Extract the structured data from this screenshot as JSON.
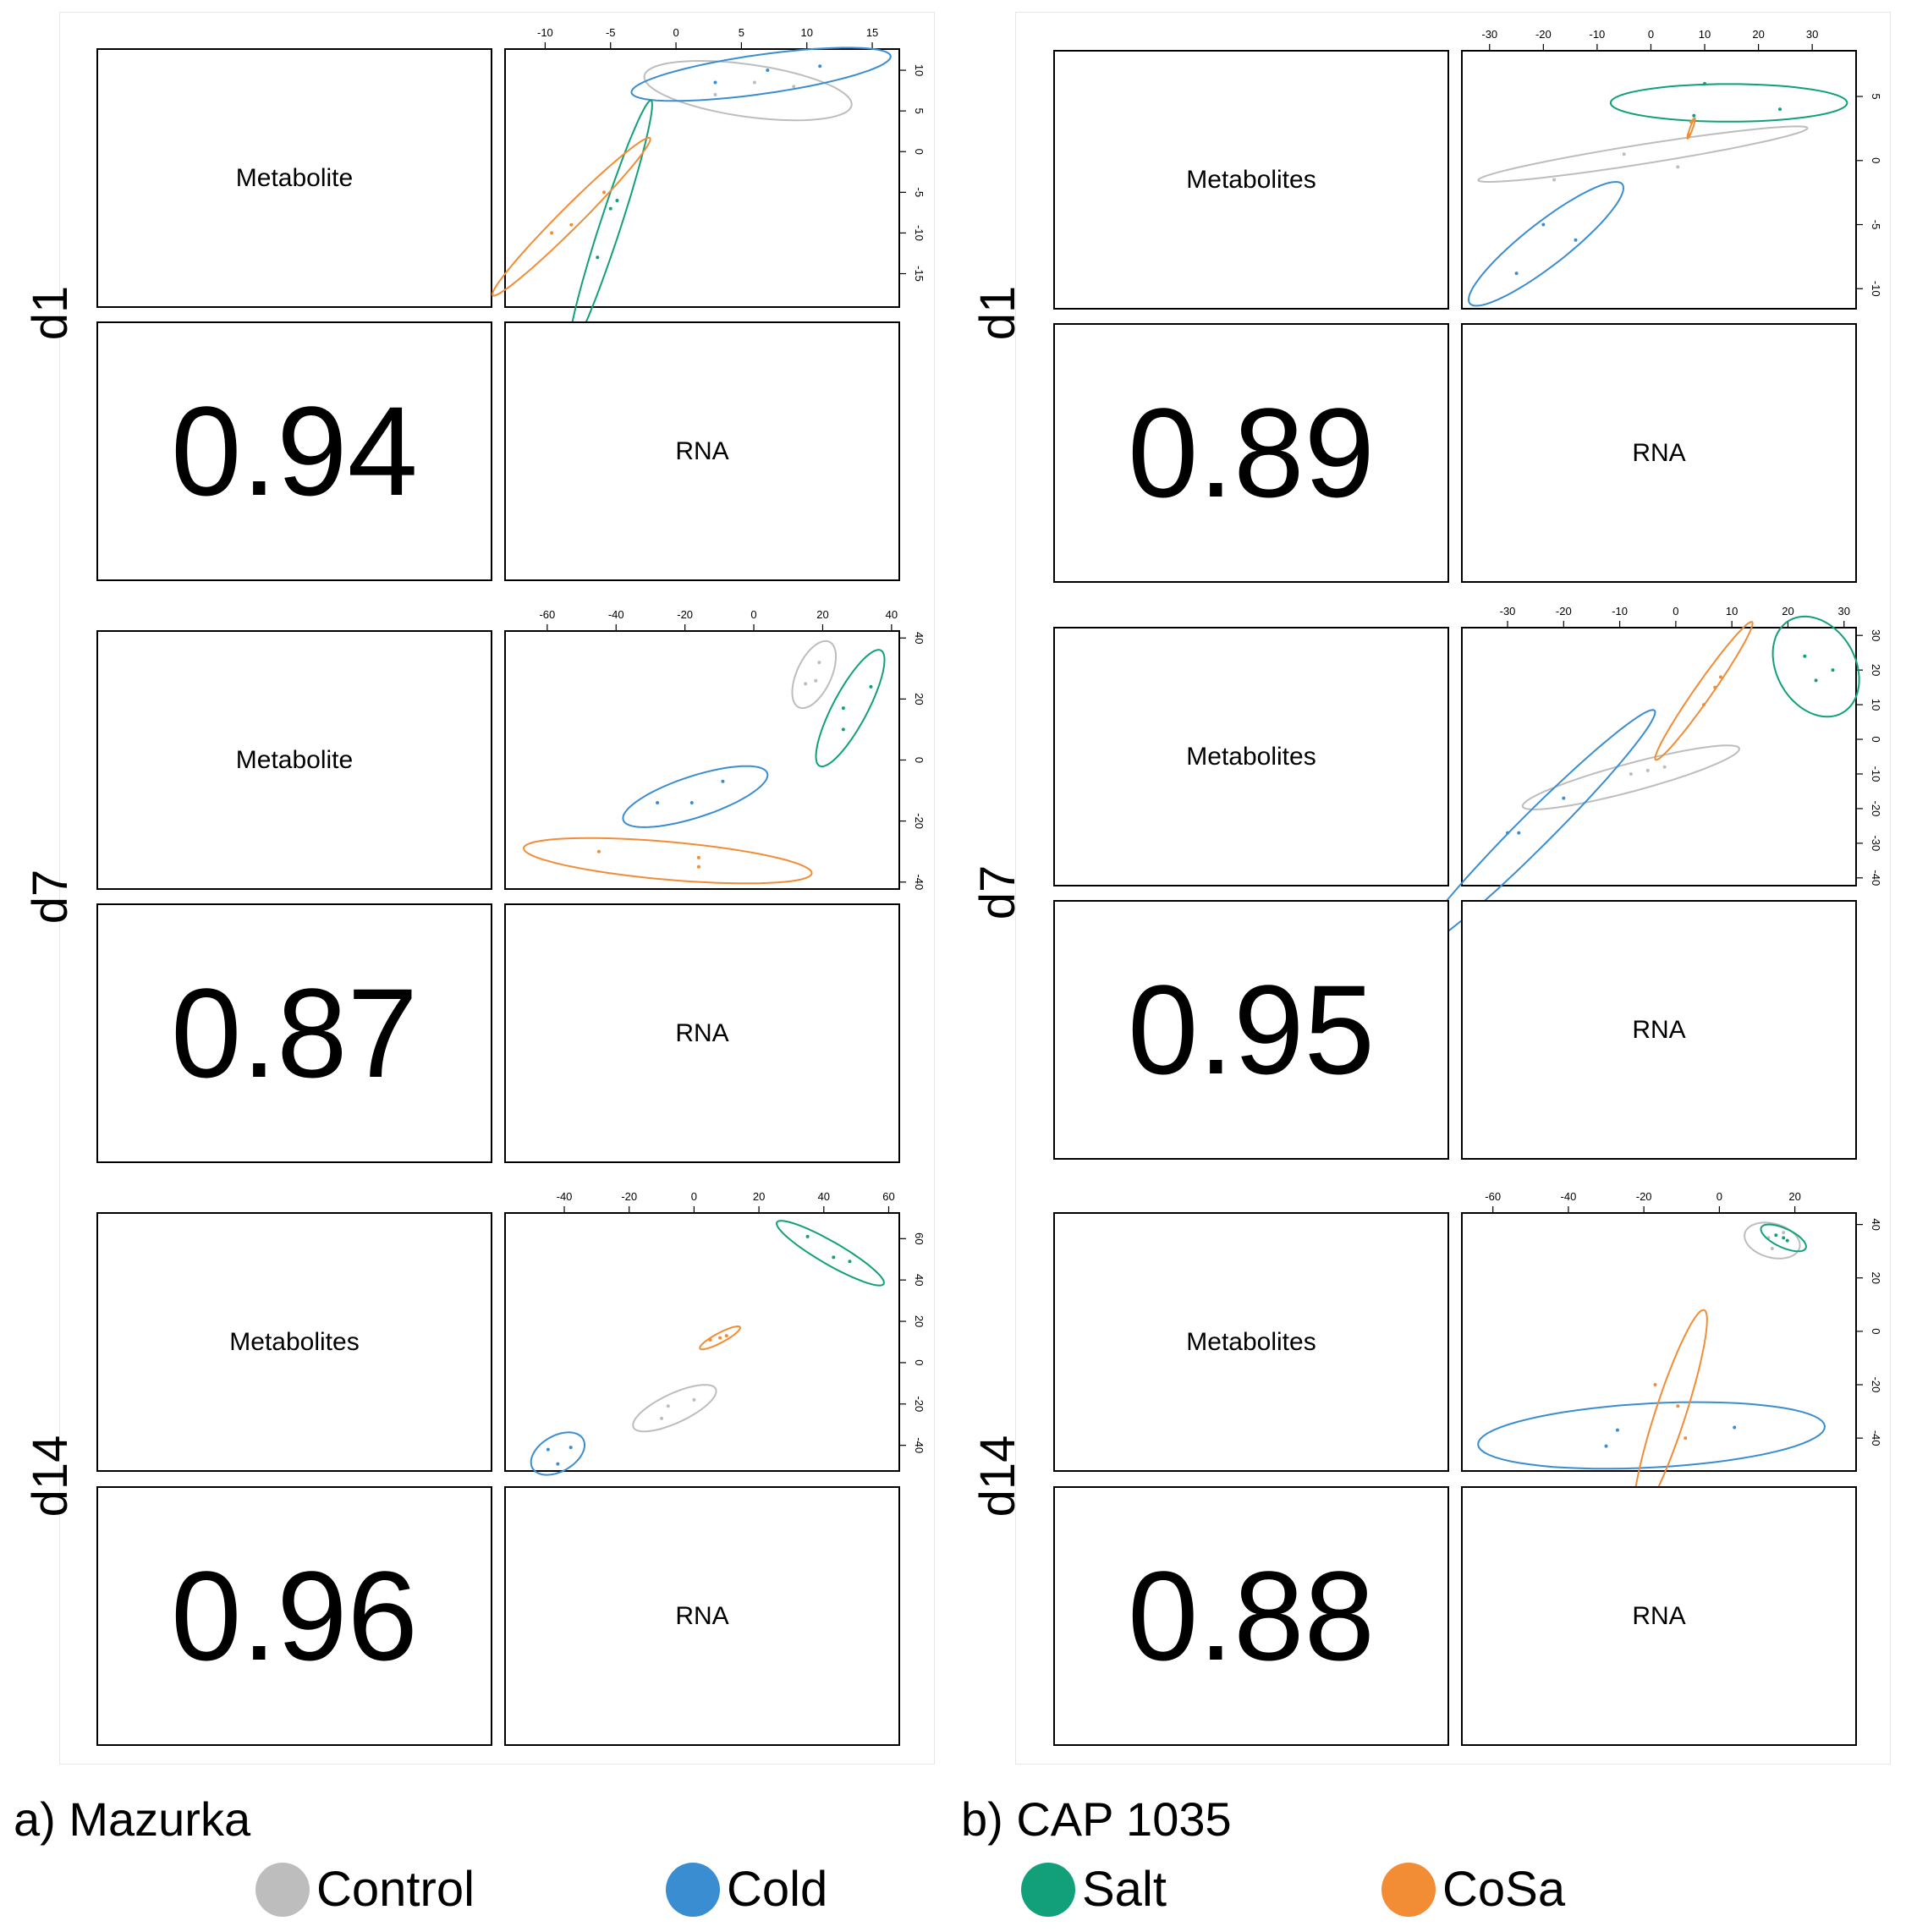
{
  "legend": [
    {
      "name": "Control",
      "color": "#bdbdbd"
    },
    {
      "name": "Cold",
      "color": "#3a8dd1"
    },
    {
      "name": "Salt",
      "color": "#11a079"
    },
    {
      "name": "CoSa",
      "color": "#f28c35"
    }
  ],
  "panels": [
    {
      "caption": "a) Mazurka",
      "rows": [
        {
          "label": "d1",
          "metabolite_label": "Metabolite",
          "rna_label": "RNA",
          "correlation": "0.94"
        },
        {
          "label": "d7",
          "metabolite_label": "Metabolite",
          "rna_label": "RNA",
          "correlation": "0.87"
        },
        {
          "label": "d14",
          "metabolite_label": "Metabolites",
          "rna_label": "RNA",
          "correlation": "0.96"
        }
      ]
    },
    {
      "caption": "b) CAP 1035",
      "rows": [
        {
          "label": "d1",
          "metabolite_label": "Metabolites",
          "rna_label": "RNA",
          "correlation": "0.89"
        },
        {
          "label": "d7",
          "metabolite_label": "Metabolites",
          "rna_label": "RNA",
          "correlation": "0.95"
        },
        {
          "label": "d14",
          "metabolite_label": "Metabolites",
          "rna_label": "RNA",
          "correlation": "0.88"
        }
      ]
    }
  ],
  "chart_data": [
    {
      "type": "scatter",
      "panel": "a) Mazurka",
      "day": "d1",
      "xlim": [
        -13,
        17
      ],
      "ylim": [
        -19,
        12.5
      ],
      "xticks": [
        -10,
        -5,
        0,
        5,
        10,
        15
      ],
      "yticks": [
        -15,
        -10,
        -5,
        0,
        5,
        10
      ],
      "series": [
        {
          "name": "Control",
          "color": "#bdbdbd",
          "points": [
            [
              3,
              7
            ],
            [
              9,
              8
            ],
            [
              6,
              8.5
            ]
          ],
          "ellipse": {
            "cx": 5.5,
            "cy": 7.5,
            "rx": 8,
            "ry": 2,
            "angle": -8
          }
        },
        {
          "name": "Cold",
          "color": "#3a8dd1",
          "points": [
            [
              3,
              8.5
            ],
            [
              7,
              10
            ],
            [
              11,
              10.5
            ]
          ],
          "ellipse": {
            "cx": 6.5,
            "cy": 9.5,
            "rx": 10,
            "ry": 1.5,
            "angle": 8
          }
        },
        {
          "name": "Salt",
          "color": "#11a079",
          "points": [
            [
              -4.5,
              -6
            ],
            [
              -6,
              -13
            ],
            [
              -5,
              -7
            ]
          ],
          "ellipse": {
            "cx": -5,
            "cy": -9,
            "rx": 10,
            "ry": 0.8,
            "angle": 72
          }
        },
        {
          "name": "CoSa",
          "color": "#f28c35",
          "points": [
            [
              -8,
              -9
            ],
            [
              -5.5,
              -5
            ],
            [
              -9.5,
              -10
            ]
          ],
          "ellipse": {
            "cx": -8,
            "cy": -8,
            "rx": 8.5,
            "ry": 0.8,
            "angle": 45
          }
        }
      ]
    },
    {
      "type": "scatter",
      "panel": "a) Mazurka",
      "day": "d7",
      "xlim": [
        -72,
        42
      ],
      "ylim": [
        -42,
        42
      ],
      "xticks": [
        -60,
        -40,
        -20,
        0,
        20,
        40
      ],
      "yticks": [
        -40,
        -20,
        0,
        20,
        40
      ],
      "series": [
        {
          "name": "Control",
          "color": "#bdbdbd",
          "points": [
            [
              19,
              32
            ],
            [
              15,
              25
            ],
            [
              18,
              26
            ]
          ],
          "ellipse": {
            "cx": 17.5,
            "cy": 28,
            "rx": 10.5,
            "ry": 5,
            "angle": 65
          }
        },
        {
          "name": "Cold",
          "color": "#3a8dd1",
          "points": [
            [
              -28,
              -14
            ],
            [
              -18,
              -14
            ],
            [
              -9,
              -7
            ]
          ],
          "ellipse": {
            "cx": -17,
            "cy": -12,
            "rx": 22,
            "ry": 6,
            "angle": 18
          }
        },
        {
          "name": "Salt",
          "color": "#11a079",
          "points": [
            [
              34,
              24
            ],
            [
              26,
              17
            ],
            [
              26,
              10
            ]
          ],
          "ellipse": {
            "cx": 28,
            "cy": 17,
            "rx": 19,
            "ry": 5,
            "angle": 62
          }
        },
        {
          "name": "CoSa",
          "color": "#f28c35",
          "points": [
            [
              -45,
              -30
            ],
            [
              -16,
              -32
            ],
            [
              -16,
              -35
            ]
          ],
          "ellipse": {
            "cx": -25,
            "cy": -33,
            "rx": 42,
            "ry": 5.5,
            "angle": -5
          }
        }
      ]
    },
    {
      "type": "scatter",
      "panel": "a) Mazurka",
      "day": "d14",
      "xlim": [
        -58,
        63
      ],
      "ylim": [
        -52,
        72
      ],
      "xticks": [
        -40,
        -20,
        0,
        20,
        40,
        60
      ],
      "yticks": [
        -40,
        -20,
        0,
        20,
        40,
        60
      ],
      "series": [
        {
          "name": "Control",
          "color": "#bdbdbd",
          "points": [
            [
              -10,
              -27
            ],
            [
              -8,
              -21
            ],
            [
              0,
              -18
            ]
          ],
          "ellipse": {
            "cx": -6,
            "cy": -22,
            "rx": 14,
            "ry": 4.5,
            "angle": 25
          }
        },
        {
          "name": "Cold",
          "color": "#3a8dd1",
          "points": [
            [
              -45,
              -42
            ],
            [
              -42,
              -49
            ],
            [
              -38,
              -41
            ]
          ],
          "ellipse": {
            "cx": -42,
            "cy": -44,
            "rx": 9,
            "ry": 5.5,
            "angle": 30
          }
        },
        {
          "name": "Salt",
          "color": "#11a079",
          "points": [
            [
              35,
              61
            ],
            [
              43,
              51
            ],
            [
              48,
              49
            ]
          ],
          "ellipse": {
            "cx": 42,
            "cy": 53,
            "rx": 19,
            "ry": 3.5,
            "angle": -30
          }
        },
        {
          "name": "CoSa",
          "color": "#f28c35",
          "points": [
            [
              5,
              11
            ],
            [
              10,
              13
            ],
            [
              8,
              12
            ]
          ],
          "ellipse": {
            "cx": 8,
            "cy": 12,
            "rx": 7,
            "ry": 1.5,
            "angle": 28
          }
        }
      ]
    },
    {
      "type": "scatter",
      "panel": "b) CAP 1035",
      "day": "d1",
      "xlim": [
        -35,
        38
      ],
      "ylim": [
        -11.5,
        8.5
      ],
      "xticks": [
        -30,
        -20,
        -10,
        0,
        10,
        20,
        30
      ],
      "yticks": [
        -10,
        -5,
        0,
        5
      ],
      "series": [
        {
          "name": "Control",
          "color": "#bdbdbd",
          "points": [
            [
              -18,
              -1.5
            ],
            [
              5,
              -0.5
            ],
            [
              -5,
              0.5
            ]
          ],
          "ellipse": {
            "cx": -1.5,
            "cy": 0.5,
            "rx": 31,
            "ry": 1.8,
            "angle": 9
          }
        },
        {
          "name": "Cold",
          "color": "#3a8dd1",
          "points": [
            [
              -25,
              -8.8
            ],
            [
              -20,
              -5
            ],
            [
              -14,
              -6.2
            ]
          ],
          "ellipse": {
            "cx": -19.5,
            "cy": -6.5,
            "rx": 18,
            "ry": 4,
            "angle": 38
          }
        },
        {
          "name": "Salt",
          "color": "#11a079",
          "points": [
            [
              10,
              6
            ],
            [
              24,
              4
            ],
            [
              8,
              3.5
            ]
          ],
          "ellipse": {
            "cx": 14.5,
            "cy": 4.5,
            "rx": 22,
            "ry": 3.5,
            "angle": 0
          }
        },
        {
          "name": "CoSa",
          "color": "#f28c35",
          "points": [
            [
              7.5,
              3
            ],
            [
              7,
              2
            ],
            [
              8,
              3.2
            ]
          ],
          "ellipse": {
            "cx": 7.5,
            "cy": 2.5,
            "rx": 2,
            "ry": 0.25,
            "angle": 70
          }
        }
      ]
    },
    {
      "type": "scatter",
      "panel": "b) CAP 1035",
      "day": "d7",
      "xlim": [
        -38,
        32
      ],
      "ylim": [
        -42,
        32
      ],
      "xticks": [
        -30,
        -20,
        -10,
        0,
        10,
        20,
        30
      ],
      "yticks": [
        -40,
        -30,
        -20,
        -10,
        0,
        10,
        20,
        30
      ],
      "series": [
        {
          "name": "Control",
          "color": "#bdbdbd",
          "points": [
            [
              -8,
              -10
            ],
            [
              -2,
              -8
            ],
            [
              -5,
              -9
            ]
          ],
          "ellipse": {
            "cx": -8,
            "cy": -11,
            "rx": 20,
            "ry": 2.5,
            "angle": 15
          }
        },
        {
          "name": "Cold",
          "color": "#3a8dd1",
          "points": [
            [
              -30,
              -27
            ],
            [
              -28,
              -27
            ],
            [
              -20,
              -17
            ]
          ],
          "ellipse": {
            "cx": -25,
            "cy": -26,
            "rx": 30,
            "ry": 3,
            "angle": 45
          }
        },
        {
          "name": "Salt",
          "color": "#11a079",
          "points": [
            [
              23,
              24
            ],
            [
              25,
              17
            ],
            [
              28,
              20
            ]
          ],
          "ellipse": {
            "cx": 25,
            "cy": 21,
            "rx": 9.5,
            "ry": 7,
            "angle": -60
          }
        },
        {
          "name": "CoSa",
          "color": "#f28c35",
          "points": [
            [
              5,
              10
            ],
            [
              7,
              15
            ],
            [
              8,
              18
            ]
          ],
          "ellipse": {
            "cx": 5,
            "cy": 14,
            "rx": 15,
            "ry": 1.5,
            "angle": 55
          }
        }
      ]
    },
    {
      "type": "scatter",
      "panel": "b) CAP 1035",
      "day": "d14",
      "xlim": [
        -68,
        36
      ],
      "ylim": [
        -52,
        44
      ],
      "xticks": [
        -60,
        -40,
        -20,
        0,
        20
      ],
      "yticks": [
        -40,
        -20,
        0,
        20,
        40
      ],
      "series": [
        {
          "name": "Control",
          "color": "#bdbdbd",
          "points": [
            [
              13,
              35
            ],
            [
              14,
              31
            ],
            [
              17,
              37
            ]
          ],
          "ellipse": {
            "cx": 14,
            "cy": 34,
            "rx": 7.5,
            "ry": 4.5,
            "angle": -15
          }
        },
        {
          "name": "Cold",
          "color": "#3a8dd1",
          "points": [
            [
              -27,
              -37
            ],
            [
              -30,
              -43
            ],
            [
              4,
              -36
            ]
          ],
          "ellipse": {
            "cx": -18,
            "cy": -39,
            "rx": 46,
            "ry": 8.5,
            "angle": 3
          }
        },
        {
          "name": "Salt",
          "color": "#11a079",
          "points": [
            [
              15,
              36
            ],
            [
              18,
              34
            ],
            [
              17,
              35
            ]
          ],
          "ellipse": {
            "cx": 17,
            "cy": 35,
            "rx": 6.5,
            "ry": 2.5,
            "angle": -25
          }
        },
        {
          "name": "CoSa",
          "color": "#f28c35",
          "points": [
            [
              -17,
              -20
            ],
            [
              -11,
              -28
            ],
            [
              -9,
              -40
            ]
          ],
          "ellipse": {
            "cx": -13,
            "cy": -31,
            "rx": 29,
            "ry": 4,
            "angle": 72
          }
        }
      ]
    }
  ]
}
